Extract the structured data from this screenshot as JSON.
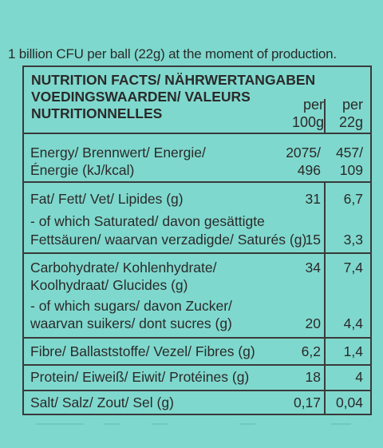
{
  "intro": "1 billion CFU per ball (22g) at the moment of production.",
  "heading": {
    "line1": "NUTRITION FACTS/ NÄHRWERTANGABEN",
    "line2": "VOEDINGSWAARDEN/ VALEURS",
    "line3": "NUTRITIONNELLES"
  },
  "columns": {
    "per100_a": "per",
    "per100_b": "100g",
    "per22_a": "per",
    "per22_b": "22g"
  },
  "rows": {
    "energy": {
      "label1": "Energy/ Brennwert/ Energie/",
      "label2": "Énergie (kJ/kcal)",
      "v100_a": "2075/",
      "v100_b": "496",
      "v22_a": "457/",
      "v22_b": "109"
    },
    "fat": {
      "label": "Fat/ Fett/ Vet/ Lipides (g)",
      "v100": "31",
      "v22": "6,7",
      "sat_label1": "- of which Saturated/ davon gesättigte",
      "sat_label2": "Fettsäuren/ waarvan verzadigde/ Saturés (g)",
      "sat_v100": "15",
      "sat_v22": "3,3"
    },
    "carbs": {
      "label1": "Carbohydrate/ Kohlenhydrate/",
      "label2": "Koolhydraat/ Glucides (g)",
      "v100": "34",
      "v22": "7,4",
      "sug_label1": "- of which sugars/ davon Zucker/",
      "sug_label2": "waarvan suikers/ dont sucres (g)",
      "sug_v100": "20",
      "sug_v22": "4,4"
    },
    "fibre": {
      "label": "Fibre/ Ballaststoffe/ Vezel/ Fibres (g)",
      "v100": "6,2",
      "v22": "1,4"
    },
    "protein": {
      "label": "Protein/ Eiweiß/ Eiwit/ Protéines (g)",
      "v100": "18",
      "v22": "4"
    },
    "salt": {
      "label": "Salt/ Salz/ Zout/ Sel (g)",
      "v100": "0,17",
      "v22": "0,04"
    }
  },
  "colors": {
    "background": "#7fd8cd",
    "ink": "#2a2a2a",
    "rule": "#3a3a3a"
  }
}
